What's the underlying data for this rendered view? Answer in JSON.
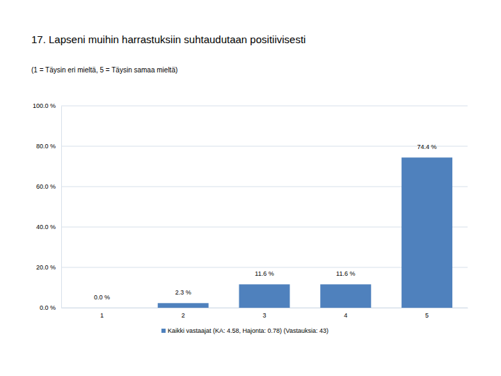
{
  "chart_data": {
    "type": "bar",
    "title": "17. Lapseni muihin harrastuksiin suhtaudutaan positiivisesti",
    "subtitle": "(1 = Täysin eri mieltä, 5 = Täysin samaa mieltä)",
    "categories": [
      "1",
      "2",
      "3",
      "4",
      "5"
    ],
    "series": [
      {
        "name": "Kaikki vastaajat (KA: 4.58, Hajonta: 0.78) (Vastauksia: 43)",
        "color": "#4f81bd",
        "values": [
          0.0,
          2.3,
          11.6,
          11.6,
          74.4
        ],
        "value_labels": [
          "0.0 %",
          "2.3 %",
          "11.6 %",
          "11.6 %",
          "74.4 %"
        ]
      }
    ],
    "ylim": [
      0,
      100
    ],
    "yticks": [
      {
        "value": 0,
        "label": "0.0 %"
      },
      {
        "value": 20,
        "label": "20.0 %"
      },
      {
        "value": 40,
        "label": "40.0 %"
      },
      {
        "value": 60,
        "label": "60.0 %"
      },
      {
        "value": 80,
        "label": "80.0 %"
      },
      {
        "value": 100,
        "label": "100.0 %"
      }
    ],
    "grid": true,
    "data_labels": true,
    "legend": "bottom"
  }
}
